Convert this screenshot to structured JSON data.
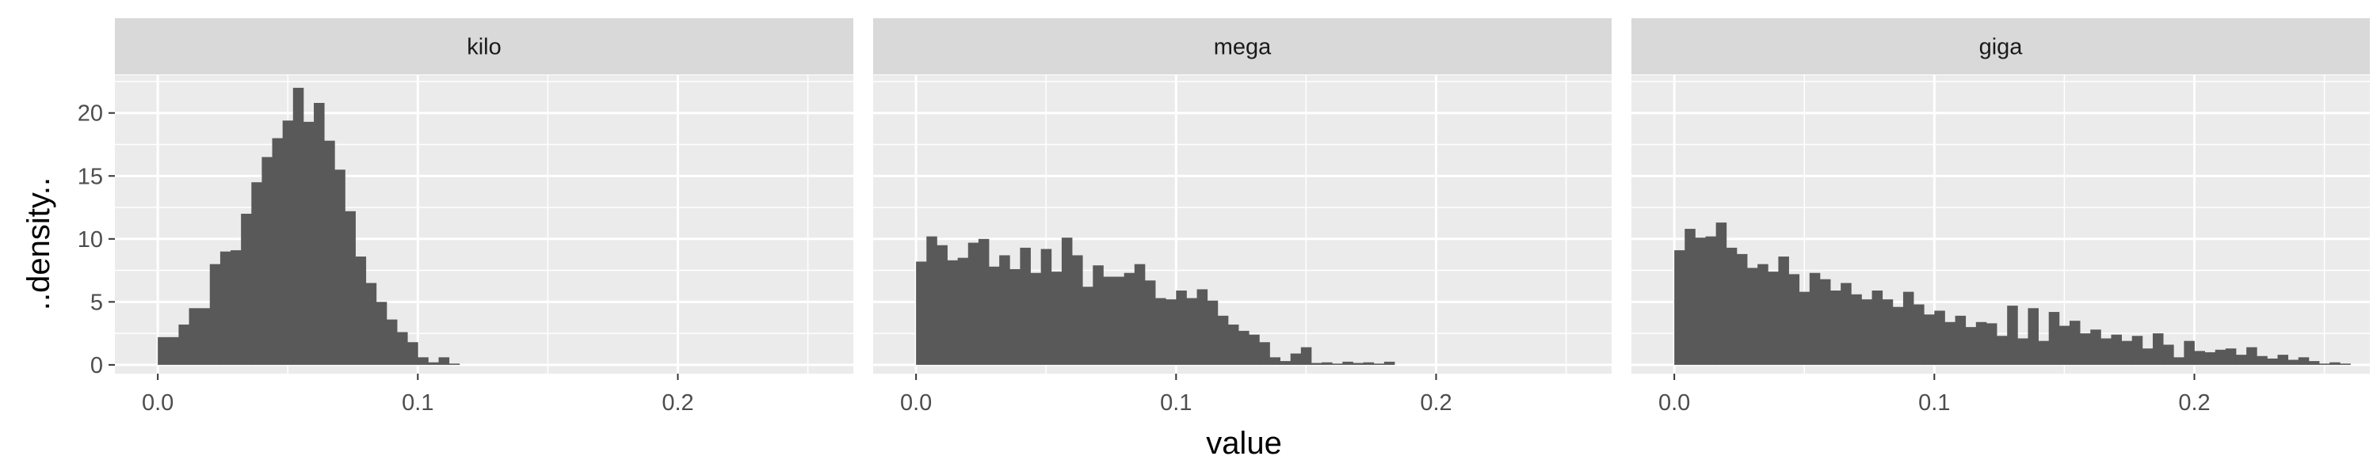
{
  "chart_data": {
    "type": "bar",
    "subtype": "faceted histogram",
    "xlabel": "value",
    "ylabel": "..density..",
    "xlim": [
      -0.0165,
      0.2675
    ],
    "ylim": [
      -0.7,
      23.0
    ],
    "x_ticks": [
      "0.0",
      "0.1",
      "0.2"
    ],
    "y_ticks": [
      "0",
      "5",
      "10",
      "15",
      "20"
    ],
    "bin_width": 0.004,
    "bin_start": 0.0,
    "bar_color": "#595959",
    "panel_background": "#ebebeb",
    "strip_background": "#d9d9d9",
    "grid": true,
    "panels": [
      {
        "label": "kilo",
        "values": [
          2.2,
          2.2,
          3.2,
          4.5,
          4.5,
          8.0,
          9.0,
          9.1,
          12.0,
          14.5,
          16.5,
          18.0,
          19.4,
          22.0,
          19.3,
          20.8,
          17.8,
          15.5,
          12.2,
          8.6,
          6.5,
          5.0,
          3.6,
          2.6,
          1.8,
          0.6,
          0.2,
          0.6,
          0.1
        ]
      },
      {
        "label": "mega",
        "values": [
          8.2,
          10.2,
          9.5,
          8.3,
          8.5,
          9.7,
          10.0,
          7.8,
          8.7,
          7.6,
          9.3,
          7.3,
          9.2,
          7.4,
          10.1,
          8.7,
          6.2,
          7.9,
          7.0,
          7.0,
          7.3,
          8.0,
          6.7,
          5.3,
          5.2,
          5.9,
          5.3,
          6.0,
          5.1,
          3.9,
          3.2,
          2.7,
          2.4,
          1.8,
          0.6,
          0.3,
          0.9,
          1.4,
          0.15,
          0.2,
          0.1,
          0.25,
          0.15,
          0.2,
          0.1,
          0.25
        ]
      },
      {
        "label": "giga",
        "values": [
          9.1,
          10.8,
          10.1,
          10.2,
          11.3,
          9.3,
          8.8,
          7.7,
          8.0,
          7.4,
          8.6,
          7.2,
          5.8,
          7.3,
          6.8,
          5.9,
          6.5,
          5.6,
          5.2,
          5.9,
          5.2,
          4.6,
          5.8,
          4.8,
          4.0,
          4.3,
          3.4,
          3.9,
          3.0,
          3.4,
          3.3,
          2.3,
          4.7,
          2.1,
          4.5,
          1.9,
          4.2,
          3.1,
          3.5,
          2.5,
          2.8,
          2.1,
          2.4,
          1.9,
          2.3,
          1.3,
          2.5,
          1.6,
          0.6,
          1.9,
          1.1,
          1.0,
          1.2,
          1.3,
          0.8,
          1.4,
          0.7,
          0.5,
          0.8,
          0.4,
          0.6,
          0.3,
          0.1,
          0.2,
          0.1
        ]
      }
    ]
  }
}
